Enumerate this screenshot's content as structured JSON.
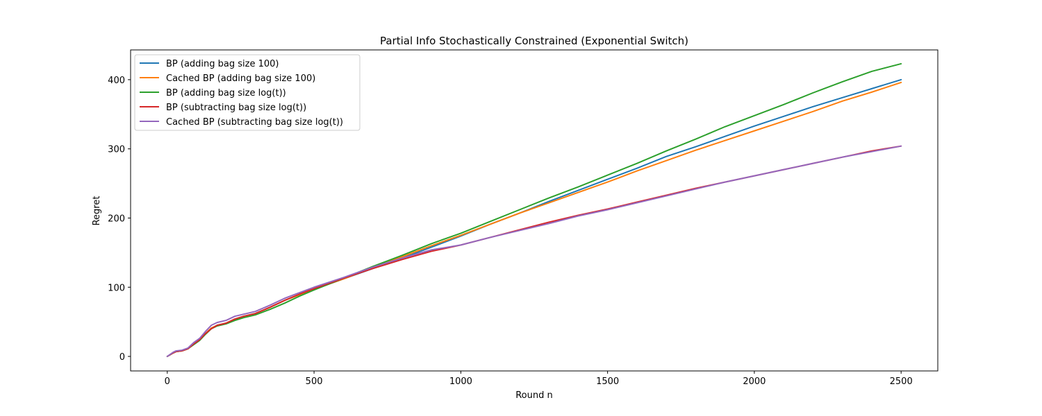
{
  "chart_data": {
    "type": "line",
    "title": "Partial Info Stochastically Constrained (Exponential Switch)",
    "xlabel": "Round n",
    "ylabel": "Regret",
    "xlim": [
      -125,
      2625
    ],
    "ylim": [
      -21,
      443
    ],
    "xticks": [
      0,
      500,
      1000,
      1500,
      2000,
      2500
    ],
    "yticks": [
      0,
      100,
      200,
      300,
      400
    ],
    "grid": false,
    "legend_position": "upper-left",
    "series": [
      {
        "name": "BP (adding bag size 100)",
        "color": "#1f77b4",
        "x": [
          0,
          20,
          30,
          50,
          70,
          90,
          110,
          130,
          150,
          170,
          200,
          230,
          260,
          300,
          350,
          400,
          450,
          500,
          600,
          700,
          800,
          900,
          1000,
          1100,
          1200,
          1300,
          1400,
          1500,
          1600,
          1700,
          1800,
          1900,
          2000,
          2100,
          2200,
          2300,
          2400,
          2500
        ],
        "y": [
          0,
          5,
          7,
          8,
          11,
          18,
          24,
          33,
          40,
          45,
          48,
          53,
          58,
          62,
          71,
          81,
          89,
          97,
          112,
          127,
          142,
          158,
          174,
          191,
          207,
          224,
          240,
          256,
          272,
          289,
          303,
          318,
          333,
          347,
          361,
          374,
          387,
          400
        ]
      },
      {
        "name": "Cached BP (adding bag size 100)",
        "color": "#ff7f0e",
        "x": [
          0,
          20,
          30,
          50,
          70,
          90,
          110,
          130,
          150,
          170,
          200,
          230,
          260,
          300,
          350,
          400,
          450,
          500,
          600,
          700,
          800,
          900,
          1000,
          1100,
          1200,
          1300,
          1400,
          1500,
          1600,
          1700,
          1800,
          1900,
          2000,
          2100,
          2200,
          2300,
          2400,
          2500
        ],
        "y": [
          0,
          5,
          7,
          8,
          11,
          18,
          24,
          33,
          41,
          45,
          48,
          54,
          58,
          62,
          71,
          81,
          89,
          97,
          112,
          128,
          144,
          160,
          175,
          191,
          207,
          222,
          237,
          252,
          268,
          283,
          298,
          312,
          326,
          340,
          354,
          369,
          382,
          396
        ]
      },
      {
        "name": "BP (adding bag size log(t))",
        "color": "#2ca02c",
        "x": [
          0,
          20,
          30,
          50,
          70,
          90,
          110,
          130,
          150,
          170,
          200,
          230,
          260,
          300,
          350,
          400,
          450,
          500,
          600,
          700,
          800,
          900,
          1000,
          1100,
          1200,
          1300,
          1400,
          1500,
          1600,
          1700,
          1800,
          1900,
          2000,
          2100,
          2200,
          2300,
          2400,
          2500
        ],
        "y": [
          0,
          5,
          7,
          8,
          11,
          17,
          23,
          32,
          40,
          44,
          47,
          52,
          56,
          60,
          68,
          77,
          87,
          96,
          113,
          130,
          146,
          163,
          178,
          195,
          212,
          229,
          245,
          262,
          279,
          297,
          314,
          332,
          348,
          364,
          381,
          397,
          412,
          423
        ]
      },
      {
        "name": "BP (subtracting bag size log(t))",
        "color": "#d62728",
        "x": [
          0,
          20,
          30,
          50,
          70,
          90,
          110,
          130,
          150,
          170,
          200,
          230,
          260,
          300,
          350,
          400,
          450,
          500,
          600,
          700,
          800,
          900,
          1000,
          1100,
          1200,
          1300,
          1400,
          1500,
          1600,
          1700,
          1800,
          1900,
          2000,
          2100,
          2200,
          2300,
          2400,
          2500
        ],
        "y": [
          0,
          5,
          7,
          8,
          11,
          18,
          24,
          33,
          40,
          45,
          48,
          54,
          58,
          62,
          71,
          81,
          90,
          98,
          113,
          127,
          140,
          152,
          161,
          172,
          183,
          194,
          204,
          213,
          223,
          233,
          243,
          252,
          261,
          270,
          279,
          288,
          297,
          304
        ]
      },
      {
        "name": "Cached BP (subtracting bag size log(t))",
        "color": "#9467bd",
        "x": [
          0,
          20,
          30,
          50,
          70,
          90,
          110,
          130,
          150,
          170,
          200,
          230,
          260,
          300,
          350,
          400,
          450,
          500,
          600,
          700,
          800,
          900,
          1000,
          1100,
          1200,
          1300,
          1400,
          1500,
          1600,
          1700,
          1800,
          1900,
          2000,
          2100,
          2200,
          2300,
          2400,
          2500
        ],
        "y": [
          0,
          6,
          8,
          9,
          12,
          20,
          26,
          36,
          45,
          49,
          52,
          58,
          61,
          65,
          74,
          84,
          92,
          100,
          114,
          129,
          142,
          154,
          161,
          172,
          182,
          192,
          203,
          212,
          222,
          232,
          242,
          252,
          261,
          270,
          279,
          288,
          296,
          304
        ]
      }
    ]
  }
}
